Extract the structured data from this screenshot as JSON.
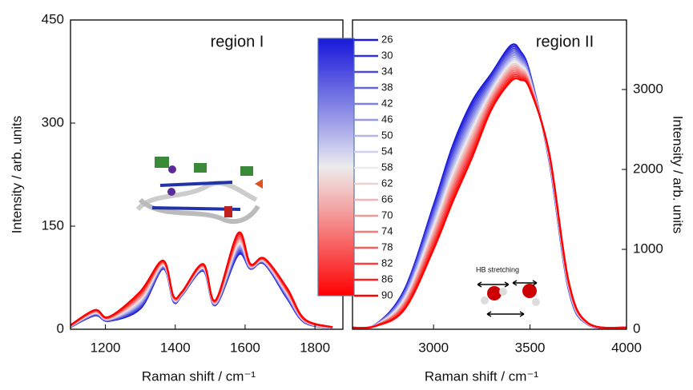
{
  "chart_data": [
    {
      "type": "line",
      "xlabel": "Raman shift / cm⁻¹",
      "ylabel": "Intensity / arb. units",
      "annotation": "region I",
      "xlim": [
        1100,
        1880
      ],
      "ylim": [
        0,
        450
      ],
      "xticks": [
        1200,
        1400,
        1600,
        1800
      ],
      "yticks": [
        0,
        150,
        300,
        450
      ],
      "x": [
        1100,
        1170,
        1210,
        1300,
        1365,
        1395,
        1420,
        1480,
        1515,
        1580,
        1615,
        1655,
        1720,
        1770,
        1850
      ],
      "series": [
        {
          "name": "26",
          "color": "#1a1adb",
          "values": [
            3,
            20,
            12,
            30,
            88,
            40,
            50,
            85,
            35,
            108,
            88,
            95,
            45,
            10,
            2
          ]
        },
        {
          "name": "30",
          "color": "#3030dd",
          "values": [
            3,
            21,
            12,
            32,
            89,
            41,
            50,
            86,
            35,
            110,
            88,
            96,
            46,
            10,
            2
          ]
        },
        {
          "name": "34",
          "color": "#4a4ae0",
          "values": [
            3,
            21,
            13,
            33,
            90,
            41,
            51,
            86,
            36,
            112,
            89,
            96,
            47,
            11,
            2
          ]
        },
        {
          "name": "38",
          "color": "#6464e2",
          "values": [
            4,
            22,
            13,
            35,
            90,
            42,
            51,
            87,
            36,
            114,
            89,
            97,
            48,
            11,
            2
          ]
        },
        {
          "name": "42",
          "color": "#7e7ee5",
          "values": [
            4,
            22,
            14,
            36,
            91,
            42,
            51,
            88,
            37,
            116,
            90,
            97,
            49,
            11,
            2
          ]
        },
        {
          "name": "46",
          "color": "#9898e8",
          "values": [
            4,
            23,
            14,
            38,
            92,
            43,
            52,
            88,
            37,
            118,
            90,
            98,
            50,
            12,
            2
          ]
        },
        {
          "name": "50",
          "color": "#b4b4ec",
          "values": [
            4,
            23,
            14,
            39,
            93,
            43,
            52,
            89,
            38,
            120,
            91,
            98,
            51,
            12,
            2
          ]
        },
        {
          "name": "54",
          "color": "#d0d0ef",
          "values": [
            4,
            24,
            15,
            41,
            93,
            44,
            52,
            89,
            38,
            122,
            91,
            99,
            52,
            12,
            2
          ]
        },
        {
          "name": "58",
          "color": "#ececec",
          "values": [
            5,
            24,
            15,
            43,
            94,
            44,
            53,
            90,
            39,
            124,
            92,
            99,
            53,
            13,
            3
          ]
        },
        {
          "name": "62",
          "color": "#f0d0d0",
          "values": [
            5,
            25,
            15,
            44,
            95,
            45,
            53,
            91,
            39,
            126,
            92,
            100,
            53,
            13,
            3
          ]
        },
        {
          "name": "66",
          "color": "#f2b4b4",
          "values": [
            5,
            25,
            16,
            46,
            96,
            45,
            53,
            91,
            39,
            128,
            92,
            100,
            54,
            13,
            3
          ]
        },
        {
          "name": "70",
          "color": "#f49898",
          "values": [
            5,
            26,
            16,
            47,
            96,
            46,
            53,
            92,
            40,
            130,
            93,
            101,
            55,
            13,
            3
          ]
        },
        {
          "name": "74",
          "color": "#f67a7a",
          "values": [
            5,
            26,
            17,
            49,
            97,
            46,
            54,
            93,
            40,
            132,
            93,
            101,
            56,
            14,
            3
          ]
        },
        {
          "name": "78",
          "color": "#f85c5c",
          "values": [
            5,
            27,
            17,
            50,
            98,
            47,
            54,
            93,
            41,
            134,
            94,
            102,
            57,
            14,
            3
          ]
        },
        {
          "name": "82",
          "color": "#fa3e3e",
          "values": [
            6,
            27,
            17,
            52,
            99,
            47,
            54,
            94,
            41,
            136,
            94,
            102,
            58,
            14,
            3
          ]
        },
        {
          "name": "86",
          "color": "#fc2020",
          "values": [
            6,
            28,
            18,
            53,
            99,
            48,
            55,
            94,
            42,
            138,
            95,
            103,
            59,
            15,
            3
          ]
        },
        {
          "name": "90",
          "color": "#ff0000",
          "values": [
            6,
            28,
            18,
            55,
            100,
            48,
            55,
            95,
            42,
            140,
            95,
            103,
            60,
            15,
            3
          ]
        }
      ]
    },
    {
      "type": "line",
      "xlabel": "Raman shift / cm⁻¹",
      "ylabel": "Intensity / arb. units",
      "annotation": "region II",
      "note": "HB stretching",
      "xlim": [
        2580,
        4000
      ],
      "ylim": [
        0,
        3870
      ],
      "xticks": [
        3000,
        3500,
        4000
      ],
      "yticks": [
        0,
        1000,
        2000,
        3000
      ],
      "x": [
        2580,
        2700,
        2850,
        3000,
        3100,
        3200,
        3300,
        3400,
        3450,
        3500,
        3600,
        3700,
        3800,
        4000
      ],
      "series": [
        {
          "color": "#1a1adb",
          "values": [
            20,
            60,
            500,
            1550,
            2300,
            2850,
            3200,
            3550,
            3480,
            3200,
            2100,
            500,
            60,
            20
          ]
        },
        {
          "color": "#3030dd",
          "values": [
            20,
            59,
            484,
            1516,
            2256,
            2806,
            3172,
            3522,
            3458,
            3188,
            2106,
            506,
            61,
            20
          ]
        },
        {
          "color": "#4a4ae0",
          "values": [
            20,
            58,
            469,
            1481,
            2213,
            2763,
            3144,
            3494,
            3435,
            3175,
            2113,
            513,
            63,
            20
          ]
        },
        {
          "color": "#6464e2",
          "values": [
            20,
            56,
            453,
            1447,
            2169,
            2719,
            3116,
            3466,
            3413,
            3163,
            2119,
            519,
            64,
            20
          ]
        },
        {
          "color": "#7e7ee5",
          "values": [
            20,
            55,
            438,
            1413,
            2125,
            2675,
            3088,
            3438,
            3390,
            3150,
            2125,
            525,
            65,
            20
          ]
        },
        {
          "color": "#9898e8",
          "values": [
            20,
            54,
            422,
            1378,
            2081,
            2631,
            3059,
            3409,
            3368,
            3138,
            2131,
            531,
            66,
            20
          ]
        },
        {
          "color": "#b4b4ec",
          "values": [
            20,
            53,
            406,
            1344,
            2038,
            2588,
            3031,
            3381,
            3345,
            3125,
            2138,
            538,
            68,
            20
          ]
        },
        {
          "color": "#d0d0ef",
          "values": [
            20,
            51,
            391,
            1309,
            1994,
            2544,
            3003,
            3353,
            3323,
            3113,
            2144,
            544,
            69,
            20
          ]
        },
        {
          "color": "#ececec",
          "values": [
            20,
            50,
            375,
            1275,
            1950,
            2500,
            2975,
            3325,
            3300,
            3100,
            2150,
            550,
            70,
            20
          ]
        },
        {
          "color": "#f0d0d0",
          "values": [
            20,
            49,
            359,
            1241,
            1906,
            2456,
            2947,
            3297,
            3278,
            3088,
            2156,
            556,
            71,
            20
          ]
        },
        {
          "color": "#f2b4b4",
          "values": [
            20,
            48,
            344,
            1206,
            1863,
            2413,
            2919,
            3269,
            3255,
            3075,
            2163,
            563,
            73,
            20
          ]
        },
        {
          "color": "#f49898",
          "values": [
            20,
            46,
            328,
            1172,
            1819,
            2369,
            2891,
            3241,
            3233,
            3063,
            2169,
            569,
            74,
            20
          ]
        },
        {
          "color": "#f67a7a",
          "values": [
            20,
            45,
            313,
            1138,
            1775,
            2325,
            2863,
            3213,
            3210,
            3050,
            2175,
            575,
            75,
            20
          ]
        },
        {
          "color": "#f85c5c",
          "values": [
            20,
            44,
            297,
            1103,
            1731,
            2281,
            2834,
            3184,
            3188,
            3038,
            2181,
            581,
            76,
            20
          ]
        },
        {
          "color": "#fa3e3e",
          "values": [
            20,
            43,
            281,
            1069,
            1688,
            2238,
            2806,
            3156,
            3165,
            3025,
            2188,
            588,
            78,
            20
          ]
        },
        {
          "color": "#fc2020",
          "values": [
            20,
            41,
            266,
            1034,
            1644,
            2194,
            2778,
            3128,
            3143,
            3013,
            2194,
            594,
            79,
            20
          ]
        },
        {
          "color": "#ff0000",
          "values": [
            20,
            40,
            250,
            1000,
            1600,
            2150,
            2750,
            3100,
            3120,
            3000,
            2200,
            600,
            80,
            20
          ]
        }
      ]
    }
  ]
}
